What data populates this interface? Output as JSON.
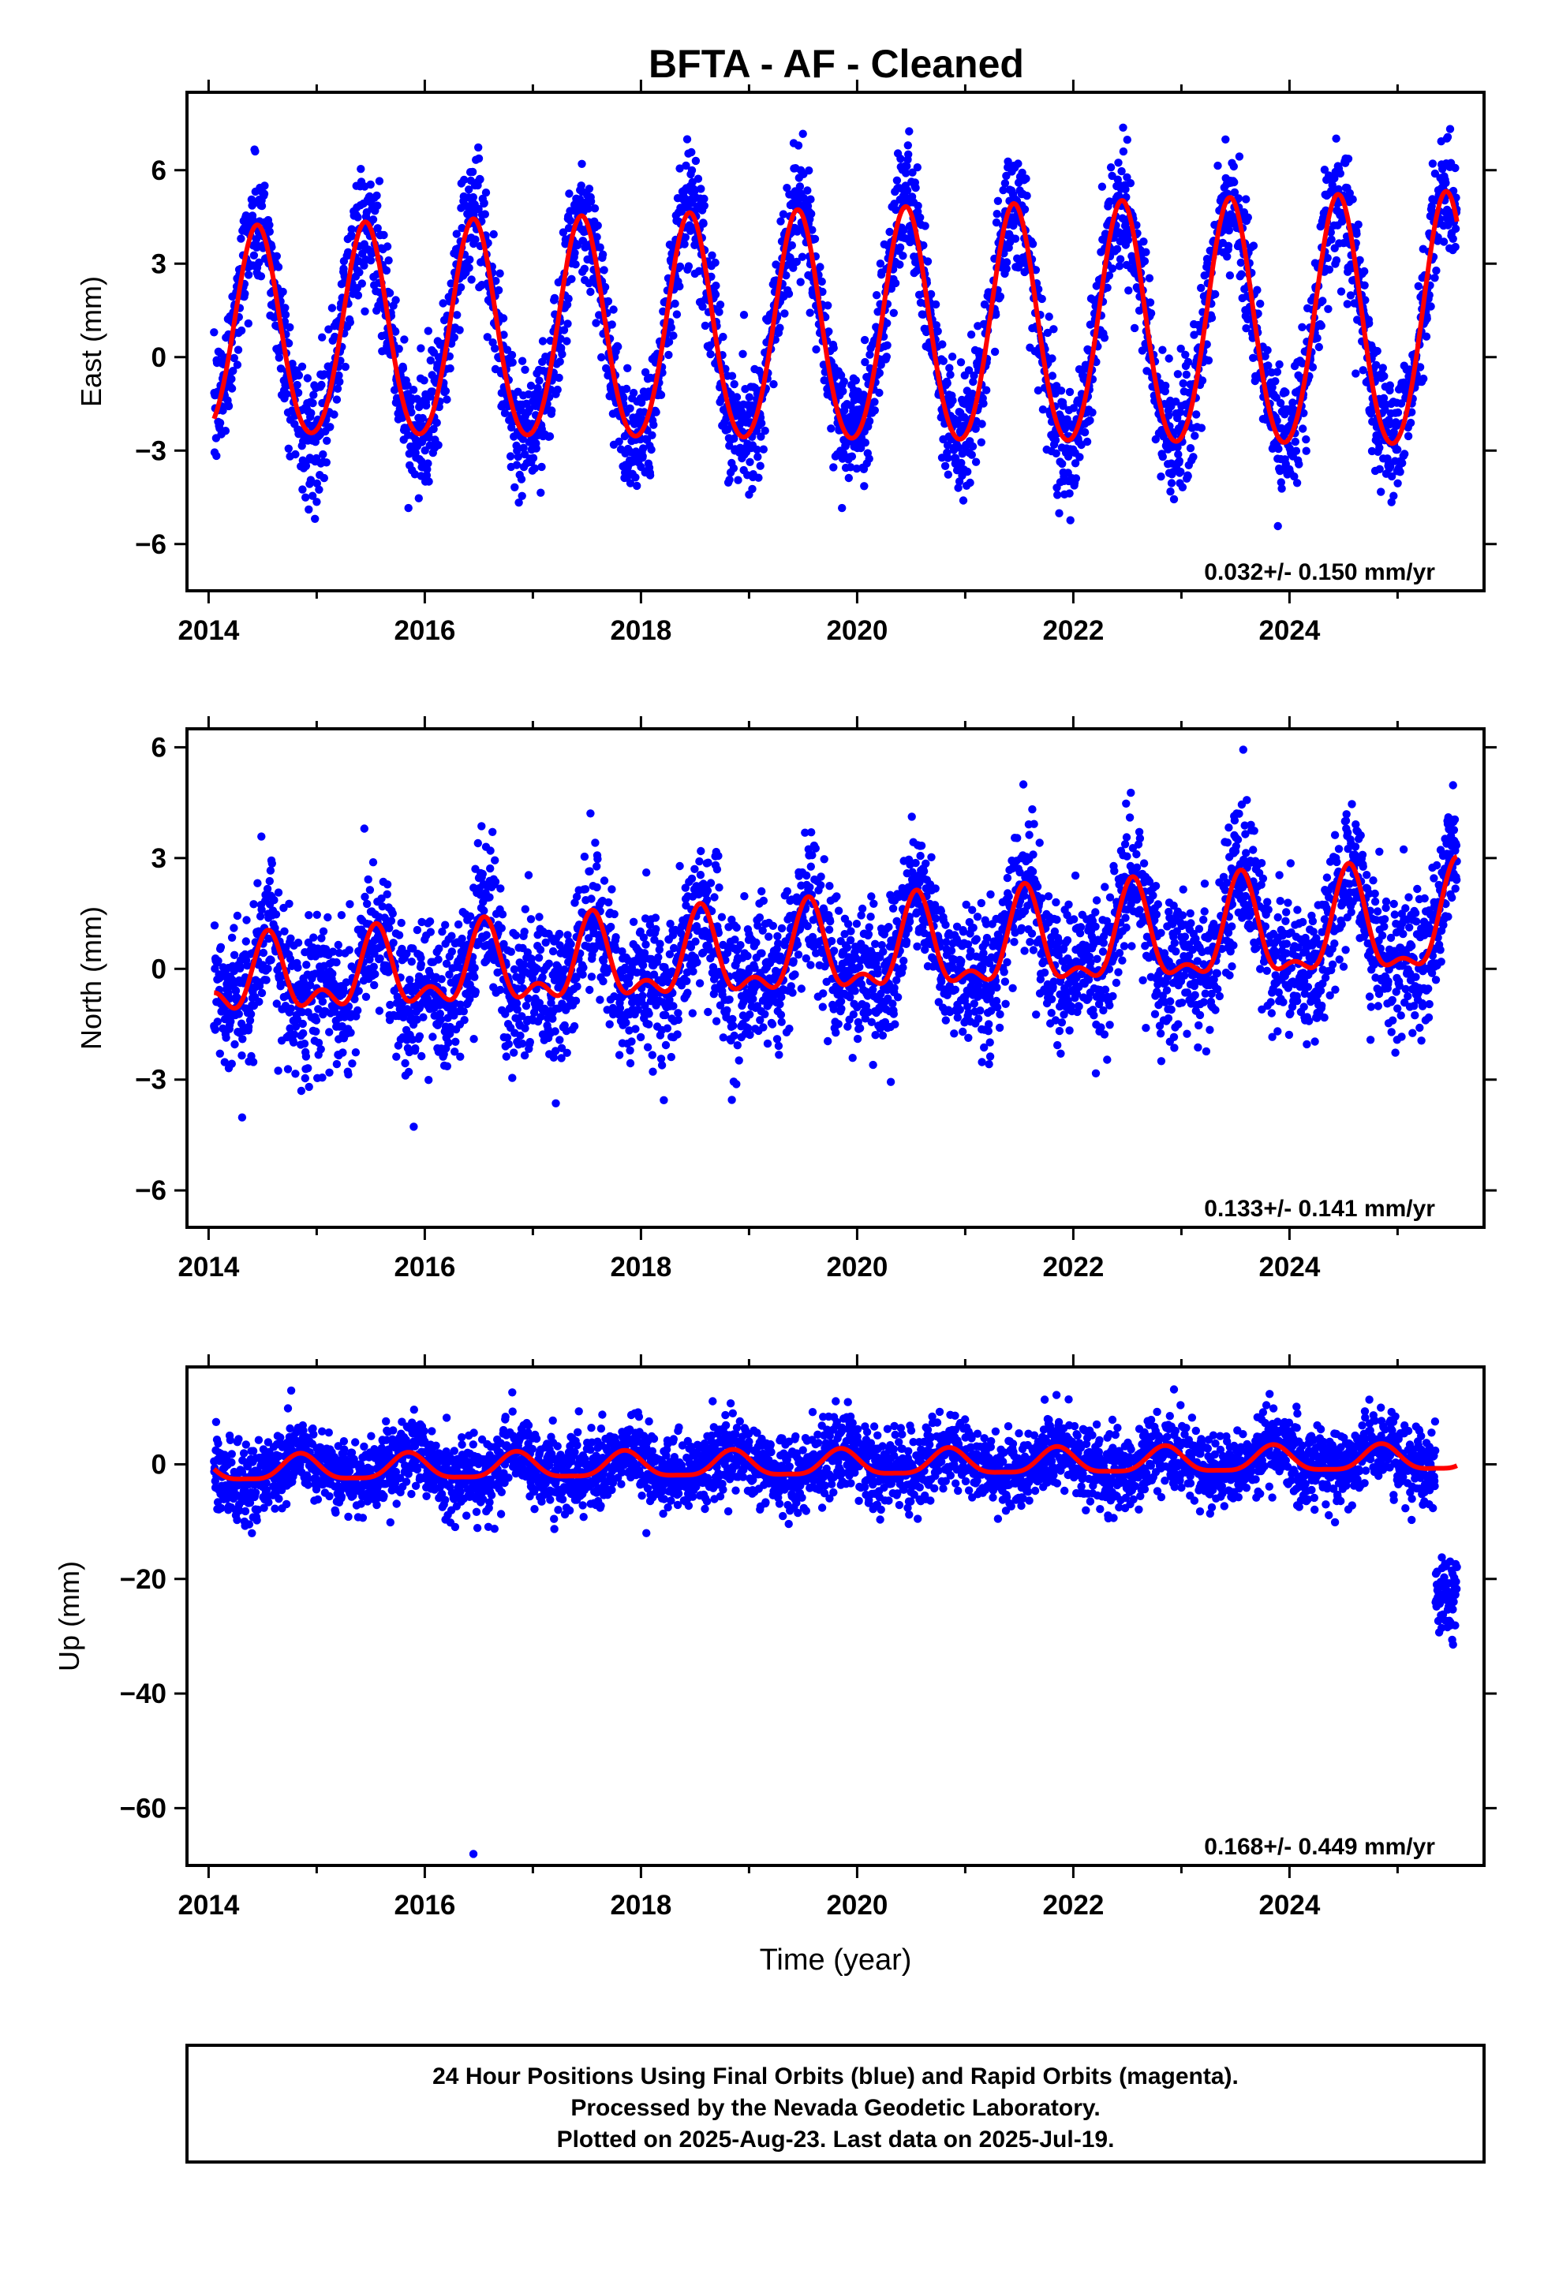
{
  "title": "BFTA  - AF - Cleaned",
  "colors": {
    "final_orbits": "#0000ff",
    "model_fit": "#ff0000",
    "frame": "#000000"
  },
  "chart_data": [
    {
      "type": "scatter",
      "name_key": "east",
      "ylabel": "East (mm)",
      "xlabel": "",
      "xlim": [
        2013.8,
        2025.8
      ],
      "ylim": [
        -7.5,
        8.5
      ],
      "xticks": [
        2014,
        2016,
        2018,
        2020,
        2022,
        2024
      ],
      "xtick_labels": [
        "2014",
        "2016",
        "2018",
        "2020",
        "2022",
        "2024"
      ],
      "yticks": [
        -6,
        -3,
        0,
        3,
        6
      ],
      "ytick_labels": [
        "−6",
        "−3",
        "0",
        "3",
        "6"
      ],
      "annotation": "0.032+/- 0.150 mm/yr",
      "data_span": [
        2014.05,
        2025.55
      ],
      "model": {
        "offset": 0.6,
        "trend": 0.032,
        "annual_amp": 3.3,
        "annual_peak": 2014.45,
        "annual_amp_growth": 0.02,
        "semiannual_amp": 0.3,
        "noise_sd": 1.0
      }
    },
    {
      "type": "scatter",
      "name_key": "north",
      "ylabel": "North (mm)",
      "xlabel": "",
      "xlim": [
        2013.8,
        2025.8
      ],
      "ylim": [
        -7,
        6.5
      ],
      "xticks": [
        2014,
        2016,
        2018,
        2020,
        2022,
        2024
      ],
      "xtick_labels": [
        "2014",
        "2016",
        "2018",
        "2020",
        "2022",
        "2024"
      ],
      "yticks": [
        -6,
        -3,
        0,
        3,
        6
      ],
      "ytick_labels": [
        "−6",
        "−3",
        "0",
        "3",
        "6"
      ],
      "annotation": "0.133+/- 0.141 mm/yr",
      "data_span": [
        2014.05,
        2025.55
      ],
      "model": {
        "offset": -0.4,
        "trend": 0.133,
        "annual_amp": 0.8,
        "annual_peak": 2014.55,
        "annual_amp_growth": 0.06,
        "semiannual_amp": 0.55,
        "noise_sd": 0.95
      }
    },
    {
      "type": "scatter",
      "name_key": "up",
      "ylabel": "Up (mm)",
      "xlabel": "Time (year)",
      "xlim": [
        2013.8,
        2025.8
      ],
      "ylim": [
        -70,
        17
      ],
      "xticks": [
        2014,
        2016,
        2018,
        2020,
        2022,
        2024
      ],
      "xtick_labels": [
        "2014",
        "2016",
        "2018",
        "2020",
        "2022",
        "2024"
      ],
      "yticks": [
        -60,
        -40,
        -20,
        0
      ],
      "ytick_labels": [
        "−60",
        "−40",
        "−20",
        "0"
      ],
      "annotation": "0.168+/- 0.449 mm/yr",
      "data_span": [
        2014.05,
        2025.55
      ],
      "model": {
        "offset": -1.0,
        "trend": 0.168,
        "annual_amp": 2.2,
        "annual_peak": 2014.85,
        "annual_amp_growth": 0.0,
        "semiannual_amp": 0.6,
        "noise_sd": 3.3
      },
      "outliers": [
        {
          "x": 2016.45,
          "y": -68
        },
        {
          "x": 2018.05,
          "y": -12
        }
      ],
      "tail_drop": {
        "start": 2025.35,
        "level": -23
      }
    }
  ],
  "footer": {
    "line1": "24 Hour Positions Using Final Orbits (blue) and Rapid Orbits (magenta).",
    "line2": "Processed by the Nevada Geodetic Laboratory.",
    "line3": "Plotted on 2025-Aug-23. Last data on 2025-Jul-19."
  }
}
